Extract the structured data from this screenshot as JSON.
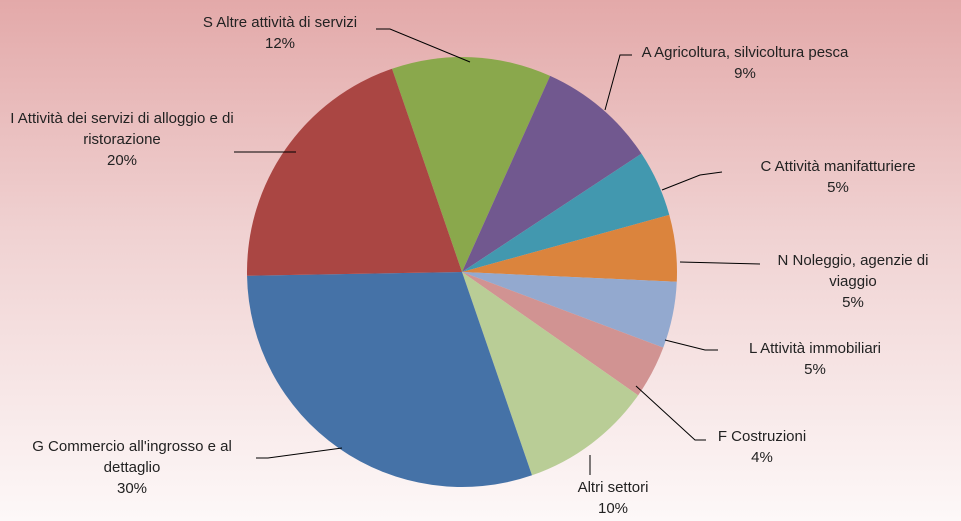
{
  "chart_data": {
    "type": "pie",
    "categories": [
      "S Altre attività di servizi",
      "A Agricoltura, silvicoltura pesca",
      "C Attività manifatturiere",
      "N Noleggio, agenzie di viaggio",
      "L Attività immobiliari",
      "F Costruzioni",
      "Altri settori",
      "G Commercio all'ingrosso e al dettaglio",
      "I Attività dei servizi di alloggio e di ristorazione"
    ],
    "values": [
      12,
      9,
      5,
      5,
      5,
      4,
      10,
      30,
      20
    ],
    "value_labels": [
      "12%",
      "9%",
      "5%",
      "5%",
      "5%",
      "4%",
      "10%",
      "30%",
      "20%"
    ],
    "colors": [
      "#8aa84c",
      "#71588f",
      "#4298af",
      "#db843d",
      "#93a9cf",
      "#d19392",
      "#b9cd96",
      "#4572a7",
      "#aa4643"
    ]
  }
}
